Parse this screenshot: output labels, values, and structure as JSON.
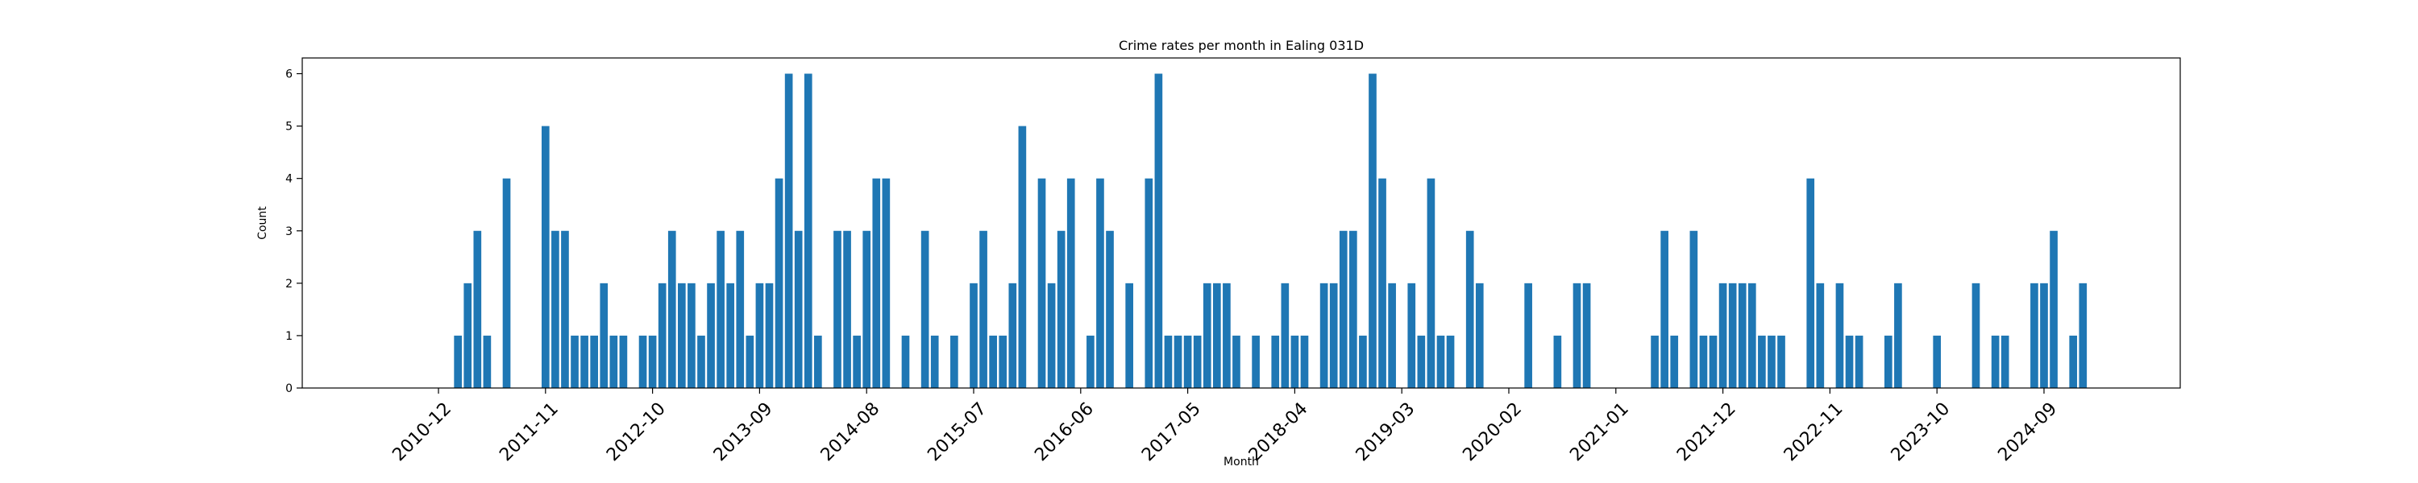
{
  "chart_data": {
    "type": "bar",
    "title": "Crime rates per month in Ealing 031D",
    "xlabel": "Month",
    "ylabel": "Count",
    "ylim": [
      0,
      6.3
    ],
    "yticks": [
      0,
      1,
      2,
      3,
      4,
      5,
      6
    ],
    "xticks": [
      "2010-12",
      "2011-11",
      "2012-10",
      "2013-09",
      "2014-08",
      "2015-07",
      "2016-06",
      "2017-05",
      "2018-04",
      "2019-03",
      "2020-02",
      "2021-01",
      "2021-12",
      "2022-11",
      "2023-10",
      "2024-09"
    ],
    "grid": false,
    "bar_color": "#1f77b4",
    "x": [
      "2011-02",
      "2011-03",
      "2011-04",
      "2011-05",
      "2011-07",
      "2011-11",
      "2011-12",
      "2012-01",
      "2012-02",
      "2012-03",
      "2012-04",
      "2012-05",
      "2012-06",
      "2012-07",
      "2012-09",
      "2012-10",
      "2012-11",
      "2012-12",
      "2013-01",
      "2013-02",
      "2013-03",
      "2013-04",
      "2013-05",
      "2013-06",
      "2013-07",
      "2013-08",
      "2013-09",
      "2013-10",
      "2013-11",
      "2013-12",
      "2014-01",
      "2014-02",
      "2014-03",
      "2014-05",
      "2014-06",
      "2014-07",
      "2014-08",
      "2014-09",
      "2014-10",
      "2014-12",
      "2015-02",
      "2015-03",
      "2015-05",
      "2015-07",
      "2015-08",
      "2015-09",
      "2015-10",
      "2015-11",
      "2015-12",
      "2016-02",
      "2016-03",
      "2016-04",
      "2016-05",
      "2016-07",
      "2016-08",
      "2016-09",
      "2016-11",
      "2017-01",
      "2017-02",
      "2017-03",
      "2017-04",
      "2017-05",
      "2017-06",
      "2017-07",
      "2017-08",
      "2017-09",
      "2017-10",
      "2017-12",
      "2018-02",
      "2018-03",
      "2018-04",
      "2018-05",
      "2018-07",
      "2018-08",
      "2018-09",
      "2018-10",
      "2018-11",
      "2018-12",
      "2019-01",
      "2019-02",
      "2019-04",
      "2019-05",
      "2019-06",
      "2019-07",
      "2019-08",
      "2019-10",
      "2019-11",
      "2020-04",
      "2020-07",
      "2020-09",
      "2020-10",
      "2021-05",
      "2021-06",
      "2021-07",
      "2021-09",
      "2021-10",
      "2021-11",
      "2021-12",
      "2022-01",
      "2022-02",
      "2022-03",
      "2022-04",
      "2022-05",
      "2022-06",
      "2022-09",
      "2022-10",
      "2022-12",
      "2023-01",
      "2023-02",
      "2023-05",
      "2023-06",
      "2023-10",
      "2024-02",
      "2024-04",
      "2024-05",
      "2024-08",
      "2024-09",
      "2024-10",
      "2024-12",
      "2025-01"
    ],
    "values": [
      1,
      2,
      3,
      1,
      4,
      5,
      3,
      3,
      1,
      1,
      1,
      2,
      1,
      1,
      1,
      1,
      2,
      3,
      2,
      2,
      1,
      2,
      3,
      2,
      3,
      1,
      2,
      2,
      4,
      6,
      3,
      6,
      1,
      3,
      3,
      1,
      3,
      4,
      4,
      1,
      3,
      1,
      1,
      2,
      3,
      1,
      1,
      2,
      5,
      4,
      2,
      3,
      4,
      1,
      4,
      3,
      2,
      4,
      6,
      1,
      1,
      1,
      1,
      2,
      2,
      2,
      1,
      1,
      1,
      2,
      1,
      1,
      2,
      2,
      3,
      3,
      1,
      6,
      4,
      2,
      2,
      1,
      4,
      1,
      1,
      3,
      2,
      2,
      1,
      2,
      2,
      1,
      3,
      1,
      3,
      1,
      1,
      2,
      2,
      2,
      2,
      1,
      1,
      1,
      4,
      2,
      2,
      1,
      1,
      1,
      2,
      1,
      2,
      1,
      1,
      2,
      2,
      3,
      1,
      2
    ]
  }
}
